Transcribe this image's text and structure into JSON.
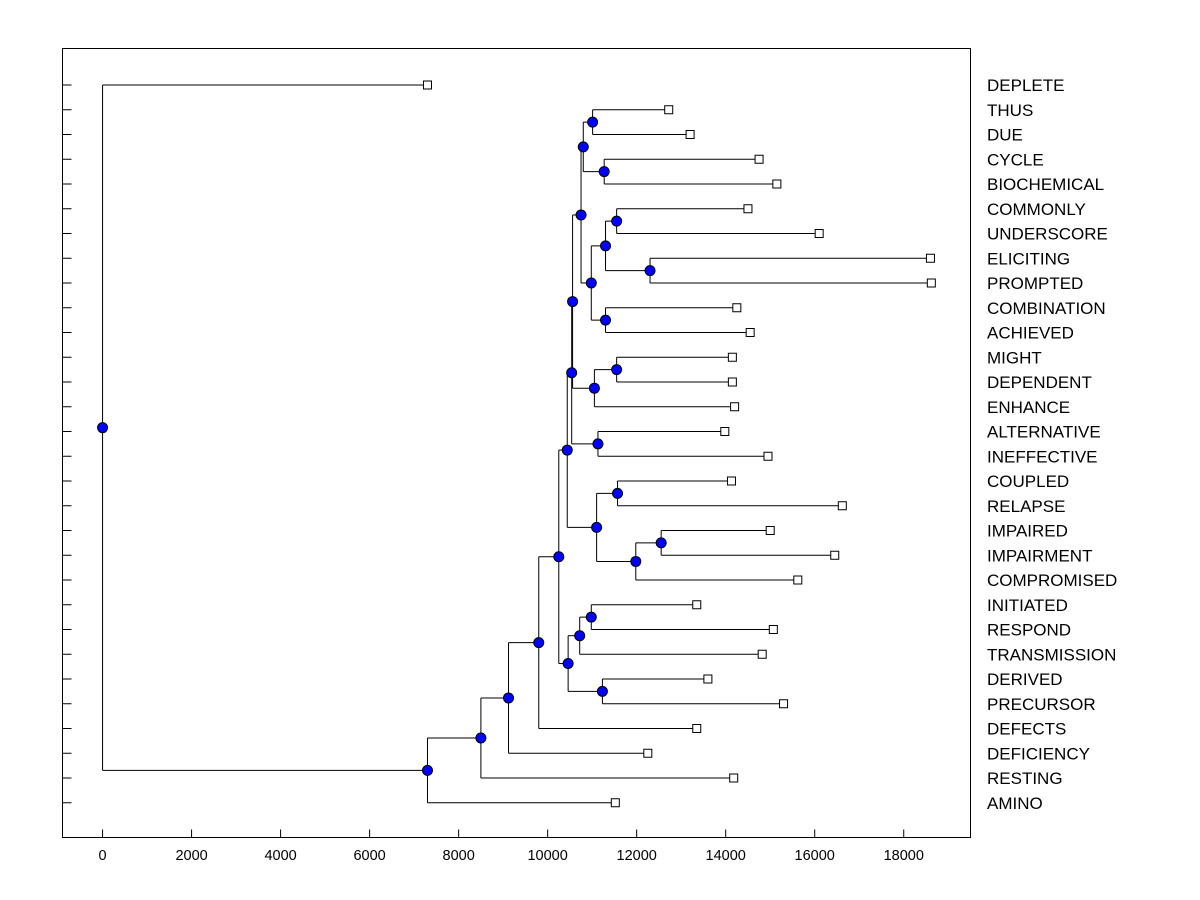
{
  "chart_data": {
    "type": "dendrogram",
    "x_ticks": [
      "0",
      "2000",
      "4000",
      "6000",
      "8000",
      "10000",
      "12000",
      "14000",
      "16000",
      "18000"
    ],
    "x_tick_values": [
      0,
      2000,
      4000,
      6000,
      8000,
      10000,
      12000,
      14000,
      16000,
      18000
    ],
    "xlim": [
      -900,
      19500
    ],
    "grid": false,
    "leaves": [
      {
        "label": "DEPLETE",
        "value": 7300
      },
      {
        "label": "THUS",
        "value": 12720
      },
      {
        "label": "DUE",
        "value": 13200
      },
      {
        "label": "CYCLE",
        "value": 14750
      },
      {
        "label": "BIOCHEMICAL",
        "value": 15150
      },
      {
        "label": "COMMONLY",
        "value": 14500
      },
      {
        "label": "UNDERSCORE",
        "value": 16100
      },
      {
        "label": "ELICITING",
        "value": 18600
      },
      {
        "label": "PROMPTED",
        "value": 18620
      },
      {
        "label": "COMBINATION",
        "value": 14250
      },
      {
        "label": "ACHIEVED",
        "value": 14550
      },
      {
        "label": "MIGHT",
        "value": 14150
      },
      {
        "label": "DEPENDENT",
        "value": 14150
      },
      {
        "label": "ENHANCE",
        "value": 14200
      },
      {
        "label": "ALTERNATIVE",
        "value": 13980
      },
      {
        "label": "INEFFECTIVE",
        "value": 14950
      },
      {
        "label": "COUPLED",
        "value": 14130
      },
      {
        "label": "RELAPSE",
        "value": 16620
      },
      {
        "label": "IMPAIRED",
        "value": 15000
      },
      {
        "label": "IMPAIRMENT",
        "value": 16450
      },
      {
        "label": "COMPROMISED",
        "value": 15620
      },
      {
        "label": "INITIATED",
        "value": 13350
      },
      {
        "label": "RESPOND",
        "value": 15070
      },
      {
        "label": "TRANSMISSION",
        "value": 14820
      },
      {
        "label": "DERIVED",
        "value": 13600
      },
      {
        "label": "PRECURSOR",
        "value": 15300
      },
      {
        "label": "DEFECTS",
        "value": 13350
      },
      {
        "label": "DEFICIENCY",
        "value": 12250
      },
      {
        "label": "RESTING",
        "value": 14180
      },
      {
        "label": "AMINO",
        "value": 11520
      }
    ],
    "merges": [
      {
        "id": "N1",
        "value": 11010,
        "children": [
          "THUS",
          "DUE"
        ]
      },
      {
        "id": "N2",
        "value": 11270,
        "children": [
          "CYCLE",
          "BIOCHEMICAL"
        ]
      },
      {
        "id": "N3",
        "value": 10800,
        "children": [
          "N1",
          "N2"
        ]
      },
      {
        "id": "N4",
        "value": 11550,
        "children": [
          "COMMONLY",
          "UNDERSCORE"
        ]
      },
      {
        "id": "N5",
        "value": 12300,
        "children": [
          "ELICITING",
          "PROMPTED"
        ]
      },
      {
        "id": "N6",
        "value": 11300,
        "children": [
          "N4",
          "N5"
        ]
      },
      {
        "id": "N7",
        "value": 11300,
        "children": [
          "COMBINATION",
          "ACHIEVED"
        ]
      },
      {
        "id": "N8",
        "value": 10980,
        "children": [
          "N6",
          "N7"
        ]
      },
      {
        "id": "N9",
        "value": 10750,
        "children": [
          "N3",
          "N8"
        ]
      },
      {
        "id": "N10",
        "value": 11550,
        "children": [
          "MIGHT",
          "DEPENDENT"
        ]
      },
      {
        "id": "N11",
        "value": 11050,
        "children": [
          "N10",
          "ENHANCE"
        ]
      },
      {
        "id": "N12",
        "value": 10560,
        "children": [
          "N9",
          "N11"
        ]
      },
      {
        "id": "N13",
        "value": 11130,
        "children": [
          "ALTERNATIVE",
          "INEFFECTIVE"
        ]
      },
      {
        "id": "N14",
        "value": 10540,
        "children": [
          "N12",
          "N13"
        ]
      },
      {
        "id": "N15",
        "value": 11570,
        "children": [
          "COUPLED",
          "RELAPSE"
        ]
      },
      {
        "id": "N16",
        "value": 12550,
        "children": [
          "IMPAIRED",
          "IMPAIRMENT"
        ]
      },
      {
        "id": "N17",
        "value": 11980,
        "children": [
          "N16",
          "COMPROMISED"
        ]
      },
      {
        "id": "N18",
        "value": 11100,
        "children": [
          "N15",
          "N17"
        ]
      },
      {
        "id": "N19",
        "value": 10440,
        "children": [
          "N14",
          "N18"
        ]
      },
      {
        "id": "N20",
        "value": 10980,
        "children": [
          "INITIATED",
          "RESPOND"
        ]
      },
      {
        "id": "N21",
        "value": 10720,
        "children": [
          "N20",
          "TRANSMISSION"
        ]
      },
      {
        "id": "N22",
        "value": 11230,
        "children": [
          "DERIVED",
          "PRECURSOR"
        ]
      },
      {
        "id": "N23",
        "value": 10460,
        "children": [
          "N21",
          "N22"
        ]
      },
      {
        "id": "N24",
        "value": 10250,
        "children": [
          "N19",
          "N23"
        ]
      },
      {
        "id": "N25",
        "value": 9800,
        "children": [
          "N24",
          "DEFECTS"
        ]
      },
      {
        "id": "N26",
        "value": 9120,
        "children": [
          "N25",
          "DEFICIENCY"
        ]
      },
      {
        "id": "N27",
        "value": 8500,
        "children": [
          "N26",
          "RESTING"
        ]
      },
      {
        "id": "N28",
        "value": 7300,
        "children": [
          "N27",
          "AMINO"
        ]
      },
      {
        "id": "N29",
        "value": 0,
        "children": [
          "DEPLETE",
          "N28"
        ]
      }
    ],
    "colors": {
      "node_fill": "#0000ff",
      "node_stroke": "#000000",
      "leaf_fill": "#ffffff",
      "line": "#000000"
    }
  }
}
